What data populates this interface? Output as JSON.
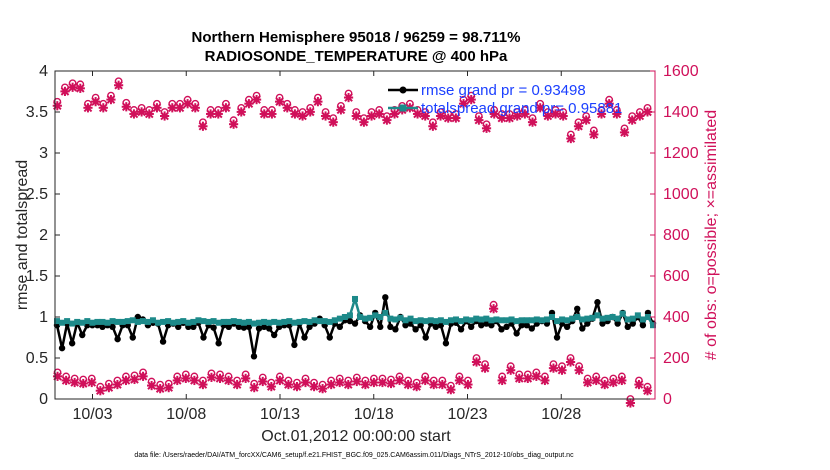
{
  "chart_data": {
    "type": "line",
    "title_line1": "Northern Hemisphere 95018 / 96259 = 98.711%",
    "title_line2": "RADIOSONDE_TEMPERATURE @ 400 hPa",
    "xlabel": "Oct.01,2012 00:00:00 start",
    "ylabel_left": "rmse and totalspread",
    "ylabel_right": "# of obs: o=possible; ×=assimilated",
    "footnote": "data file: /Users/raeder/DAI/ATM_forcXX/CAM6_setup/f.e21.FHIST_BGC.f09_025.CAM6assim.011/Diags_NTrS_2012-10/obs_diag_output.nc",
    "x_range_days": [
      1,
      33
    ],
    "ylim_left": [
      0,
      4
    ],
    "ylim_right": [
      0,
      1600
    ],
    "x_tick_labels": [
      "10/03",
      "10/08",
      "10/13",
      "10/18",
      "10/23",
      "10/28"
    ],
    "x_tick_days": [
      3,
      8,
      13,
      18,
      23,
      28
    ],
    "y_ticks_left": [
      "0",
      "0.5",
      "1",
      "1.5",
      "2",
      "2.5",
      "3",
      "3.5",
      "4"
    ],
    "y_ticks_right": [
      "0",
      "200",
      "400",
      "600",
      "800",
      "1000",
      "1200",
      "1400",
      "1600"
    ],
    "grid": false,
    "legend_position": "top-right",
    "series": [
      {
        "name": "rmse grand pr = 0.93498",
        "axis": "left",
        "color": "#000000",
        "marker": "filled-circle",
        "values": [
          0.9,
          0.62,
          0.92,
          0.68,
          0.93,
          0.78,
          0.9,
          0.9,
          0.9,
          0.88,
          0.9,
          0.88,
          0.73,
          0.9,
          0.9,
          0.75,
          1.0,
          0.97,
          0.9,
          0.93,
          0.92,
          0.7,
          0.9,
          0.92,
          0.88,
          0.93,
          0.88,
          0.88,
          0.93,
          0.75,
          0.9,
          0.87,
          0.68,
          0.9,
          0.88,
          0.92,
          0.88,
          0.87,
          0.88,
          0.52,
          0.86,
          0.88,
          0.86,
          0.78,
          0.88,
          0.9,
          0.9,
          0.66,
          0.92,
          0.75,
          0.88,
          0.92,
          0.98,
          0.9,
          0.75,
          0.92,
          0.88,
          0.96,
          0.95,
          0.92,
          1.02,
          0.95,
          0.88,
          1.05,
          0.88,
          1.24,
          0.88,
          0.85,
          1.0,
          0.9,
          0.92,
          0.85,
          0.9,
          0.75,
          0.92,
          0.88,
          0.9,
          0.68,
          0.92,
          0.93,
          0.85,
          0.95,
          0.88,
          0.95,
          0.9,
          0.92,
          0.9,
          0.95,
          0.85,
          0.88,
          0.92,
          0.8,
          0.9,
          0.9,
          0.86,
          0.92,
          0.95,
          0.92,
          1.05,
          0.75,
          0.92,
          0.88,
          0.95,
          1.1,
          0.86,
          0.92,
          0.98,
          1.18,
          0.92,
          0.95,
          1.0,
          0.92,
          1.05,
          0.88,
          0.92,
          1.0,
          0.9,
          1.05,
          0.92
        ]
      },
      {
        "name": "totalspread grand pr= 0.95881",
        "axis": "left",
        "color": "#1d8a8a",
        "marker": "filled-square",
        "values": [
          0.95,
          0.93,
          0.95,
          0.92,
          0.94,
          0.93,
          0.95,
          0.93,
          0.94,
          0.94,
          0.93,
          0.95,
          0.94,
          0.94,
          0.95,
          0.96,
          0.94,
          0.95,
          0.94,
          0.96,
          0.93,
          0.94,
          0.95,
          0.93,
          0.94,
          0.95,
          0.93,
          0.94,
          0.96,
          0.95,
          0.94,
          0.95,
          0.93,
          0.94,
          0.94,
          0.95,
          0.94,
          0.93,
          0.94,
          0.92,
          0.93,
          0.94,
          0.93,
          0.94,
          0.93,
          0.94,
          0.95,
          0.93,
          0.94,
          0.95,
          0.94,
          0.96,
          0.95,
          0.95,
          0.94,
          0.96,
          0.98,
          1.0,
          1.02,
          1.22,
          1.0,
          0.98,
          0.99,
          1.02,
          1.0,
          1.05,
          0.98,
          0.97,
          0.99,
          0.96,
          0.98,
          0.95,
          0.96,
          0.95,
          0.96,
          0.95,
          0.96,
          0.94,
          0.96,
          0.97,
          0.95,
          0.97,
          0.96,
          0.98,
          0.97,
          0.98,
          0.96,
          0.97,
          0.96,
          0.96,
          0.97,
          0.95,
          0.96,
          0.96,
          0.96,
          0.97,
          0.96,
          0.97,
          1.0,
          0.95,
          0.97,
          0.96,
          0.98,
          1.0,
          0.97,
          0.98,
          0.99,
          1.02,
          0.98,
          0.99,
          1.0,
          0.98,
          1.04,
          0.97,
          0.98,
          1.02,
          0.97,
          1.0,
          0.9
        ]
      },
      {
        "name": "possible",
        "axis": "right",
        "color": "#d0105a",
        "marker": "open-circle",
        "high_values": [
          1450,
          1520,
          1540,
          1535,
          1440,
          1470,
          1440,
          1480,
          1550,
          1445,
          1410,
          1420,
          1410,
          1440,
          1400,
          1440,
          1440,
          1460,
          1440,
          1350,
          1410,
          1410,
          1440,
          1360,
          1420,
          1460,
          1480,
          1410,
          1410,
          1470,
          1440,
          1410,
          1400,
          1420,
          1470,
          1400,
          1370,
          1430,
          1490,
          1400,
          1370,
          1400,
          1410,
          1380,
          1410,
          1430,
          1440,
          1410,
          1400,
          1350,
          1400,
          1390,
          1390,
          1460,
          1480,
          1380,
          1340,
          1410,
          1390,
          1390,
          1400,
          1410,
          1370,
          1440,
          1400,
          1410,
          1400,
          1290,
          1350,
          1380,
          1310,
          1410,
          1460,
          1410,
          1320,
          1380,
          1400,
          1420
        ],
        "low_values": [
          130,
          110,
          100,
          95,
          100,
          60,
          75,
          90,
          110,
          115,
          130,
          85,
          70,
          75,
          110,
          120,
          110,
          90,
          125,
          120,
          110,
          90,
          120,
          75,
          105,
          80,
          110,
          90,
          80,
          100,
          80,
          70,
          90,
          100,
          90,
          105,
          90,
          100,
          100,
          95,
          110,
          90,
          80,
          110,
          90,
          90,
          65,
          110,
          90,
          200,
          170,
          460,
          110,
          160,
          120,
          120,
          130,
          110,
          170,
          160,
          200,
          160,
          100,
          110,
          90,
          100,
          110,
          0,
          90,
          60
        ]
      },
      {
        "name": "assimilated",
        "axis": "right",
        "color": "#d0105a",
        "marker": "cross"
      }
    ]
  }
}
